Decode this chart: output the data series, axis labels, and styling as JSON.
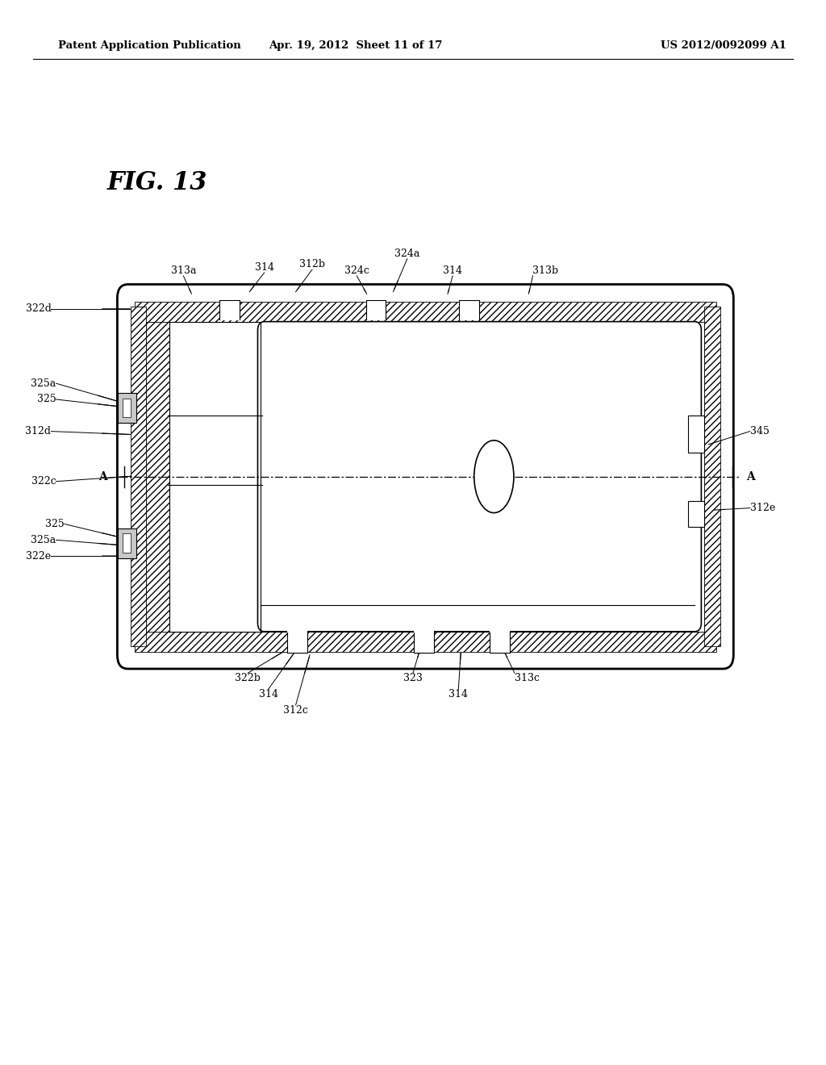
{
  "bg_color": "#ffffff",
  "line_color": "#000000",
  "header_left": "Patent Application Publication",
  "header_center": "Apr. 19, 2012  Sheet 11 of 17",
  "header_right": "US 2012/0092099 A1",
  "fig_title": "FIG. 13",
  "diagram": {
    "ox1": 0.155,
    "ox2": 0.875,
    "oy1": 0.385,
    "oy2": 0.72,
    "wall": 0.022,
    "corner_r": 0.018
  }
}
